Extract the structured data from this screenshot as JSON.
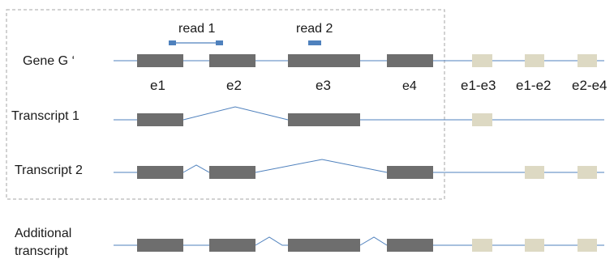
{
  "reads": {
    "read1": "read 1",
    "read2": "read 2"
  },
  "rows": {
    "gene": "Gene  G ‘",
    "transcript1": "Transcript 1",
    "transcript2": "Transcript 2",
    "additional_line1": "Additional",
    "additional_line2": "transcript"
  },
  "exons": {
    "e1": "e1",
    "e2": "e2",
    "e3": "e3",
    "e4": "e4"
  },
  "junctions": {
    "j13": "e1-e3",
    "j12": "e1-e2",
    "j24": "e2-e4"
  },
  "colors": {
    "exon": "#6e6e6e",
    "junction": "#ddd9c3",
    "line": "#4f81bd",
    "read": "#4f81bd",
    "frame": "#a6a6a6"
  }
}
